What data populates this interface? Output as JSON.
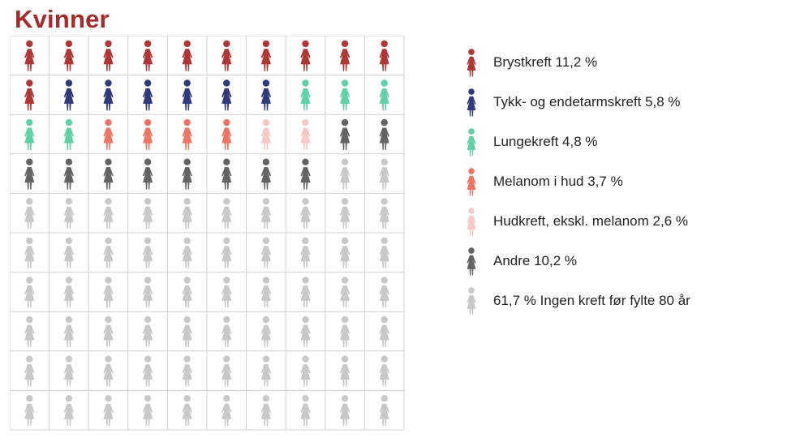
{
  "title": "Kvinner",
  "colors": {
    "title": "#A52A2A",
    "grid_lines": "#d0d0d0"
  },
  "chart_data": {
    "type": "pictograph",
    "title": "Kvinner",
    "unit_percent_per_icon": 1,
    "grid": {
      "rows": 10,
      "cols": 10,
      "fill_order": "row-major"
    },
    "categories": [
      {
        "label": "Brystkreft 11,2 %",
        "value": 11.2,
        "icons": 11,
        "color": "#B03535"
      },
      {
        "label": "Tykk- og endetarmskreft 5,8 %",
        "value": 5.8,
        "icons": 6,
        "color": "#2E3A7A"
      },
      {
        "label": "Lungekreft 4,8 %",
        "value": 4.8,
        "icons": 5,
        "color": "#5ED1A5"
      },
      {
        "label": "Melanom i hud 3,7 %",
        "value": 3.7,
        "icons": 4,
        "color": "#EE7565"
      },
      {
        "label": "Hudkreft, ekskl. melanom 2,6 %",
        "value": 2.6,
        "icons": 2,
        "color": "#F7C9C6"
      },
      {
        "label": "Andre 10,2 %",
        "value": 10.2,
        "icons": 10,
        "color": "#636363"
      },
      {
        "label": "61,7 % Ingen kreft før fylte 80 år",
        "value": 61.7,
        "icons": 62,
        "color": "#C8C8C8"
      }
    ]
  }
}
